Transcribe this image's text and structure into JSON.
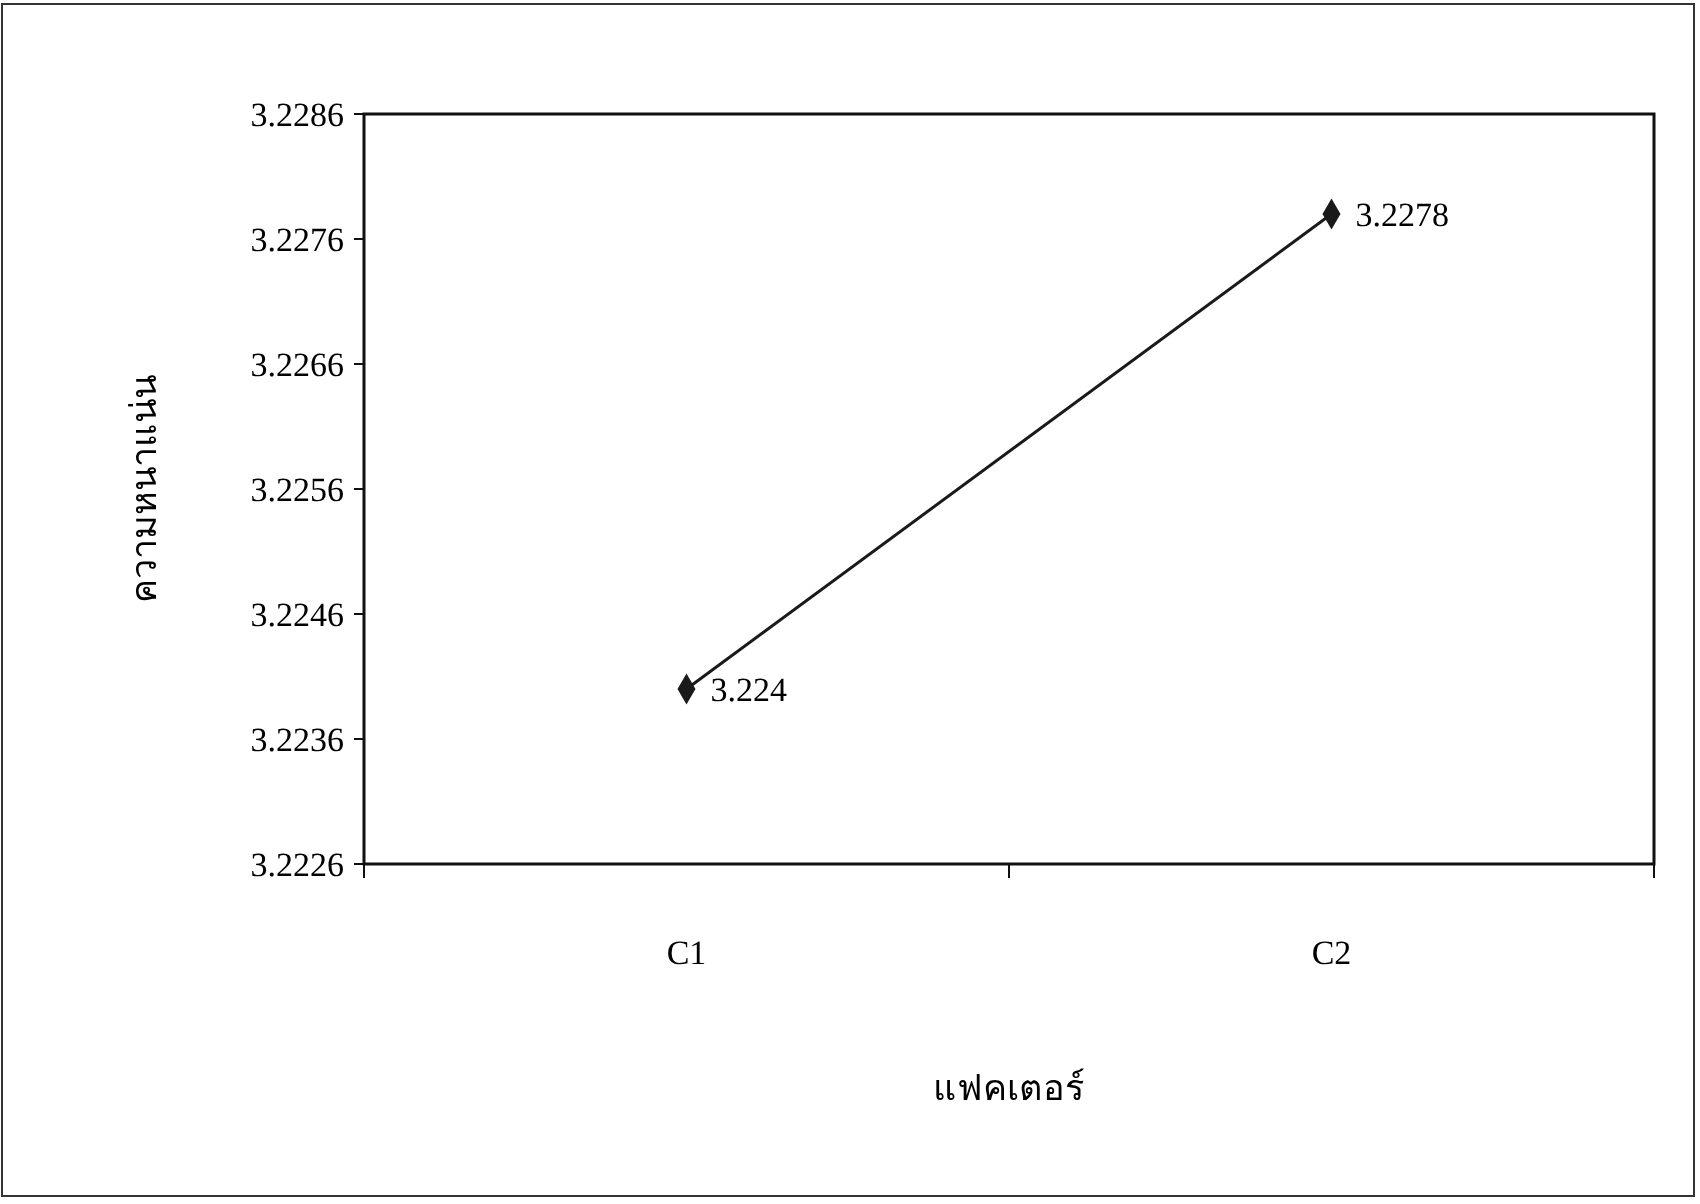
{
  "chart_data": {
    "type": "line",
    "xlabel": "แฟคเตอร์",
    "ylabel": "ความหนาแน่น",
    "categories": [
      "C1",
      "C2"
    ],
    "series": [
      {
        "color": "#1a1a1a",
        "values": [
          3.224,
          3.2278
        ]
      }
    ],
    "ylim": [
      3.2226,
      3.2286
    ],
    "yticks": [
      3.2226,
      3.2236,
      3.2246,
      3.2256,
      3.2266,
      3.2276,
      3.2286
    ],
    "marker": "diamond",
    "line_style": "solid",
    "data_labels": true,
    "grid": false
  }
}
